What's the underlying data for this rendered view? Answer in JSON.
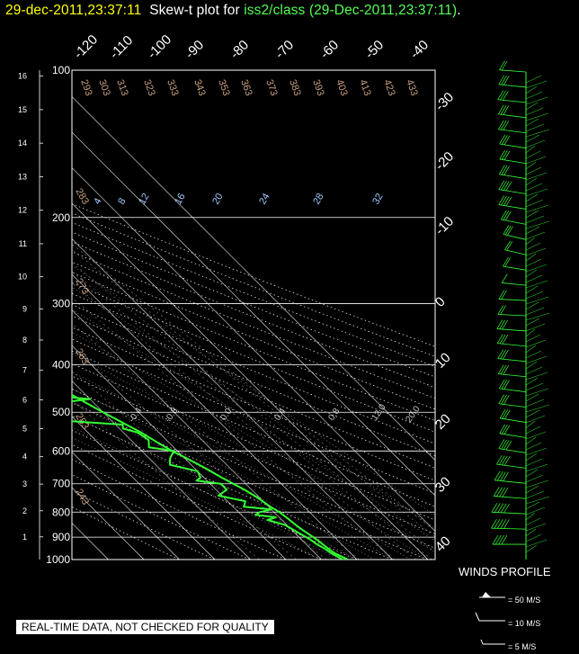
{
  "header": {
    "timestamp": "29-dec-2011,23:37:11",
    "title_prefix": "Skew-t plot for",
    "station": "iss2/class",
    "station_time": "(29-Dec-2011,23:37:11)",
    "title_end": "."
  },
  "disclaimer": "REAL-TIME DATA, NOT CHECKED FOR QUALITY",
  "winds_profile": {
    "title": "WINDS PROFILE",
    "legend": [
      {
        "label": "= 50 M/S"
      },
      {
        "label": "= 10 M/S"
      },
      {
        "label": "= 5 M/S"
      }
    ]
  },
  "colors": {
    "background": "#000000",
    "grid": "#ffffff",
    "trace": "#33ff33",
    "timestamp": "#ffff00",
    "station": "#55ff55",
    "theta_label": "#c8a080",
    "mixing_label": "#a0c8ff"
  },
  "chart_data": {
    "type": "line",
    "chart_kind": "skew-t",
    "pressure_levels": [
      100,
      200,
      300,
      400,
      500,
      600,
      700,
      800,
      900,
      1000
    ],
    "pressure_range": [
      100,
      1000
    ],
    "temperature_range": [
      -40,
      40
    ],
    "temperature_axis_labels": [
      "-120",
      "-110",
      "-100",
      "-90",
      "-80",
      "-70",
      "-60",
      "-50",
      "-40",
      "-30",
      "-20",
      "-10",
      "0",
      "10",
      "20",
      "30",
      "40"
    ],
    "height_labels_km": [
      "1",
      "2",
      "3",
      "4",
      "5",
      "6",
      "7",
      "8",
      "9",
      "10",
      "11",
      "12",
      "13",
      "14",
      "15",
      "16"
    ],
    "dry_adiabat_labels": [
      "293",
      "303",
      "313",
      "323",
      "333",
      "343",
      "353",
      "363",
      "373",
      "383",
      "393",
      "403",
      "413",
      "423",
      "433",
      "283",
      "273",
      "263",
      "253",
      "243"
    ],
    "mixing_ratio_labels": [
      "4",
      "8",
      "12",
      "16",
      "20",
      "24",
      "28",
      "32"
    ],
    "moist_adiabat_labels": [
      "-0.4",
      "-0.8",
      "0.0",
      "0.4",
      "0.8",
      "12.0",
      "20.0"
    ],
    "series": [
      {
        "name": "temperature",
        "points": [
          [
            1000,
            -2.5
          ],
          [
            970,
            -4.5
          ],
          [
            950,
            -5.0
          ],
          [
            920,
            -5.5
          ],
          [
            900,
            -6.0
          ],
          [
            870,
            -7.0
          ],
          [
            850,
            -7.5
          ],
          [
            820,
            -8.0
          ],
          [
            800,
            -8.5
          ],
          [
            780,
            -9.5
          ],
          [
            750,
            -10.5
          ],
          [
            720,
            -12.0
          ],
          [
            700,
            -13.5
          ],
          [
            680,
            -15.0
          ],
          [
            650,
            -17.0
          ],
          [
            620,
            -19.5
          ],
          [
            600,
            -21.5
          ],
          [
            580,
            -23.0
          ],
          [
            550,
            -25.0
          ],
          [
            530,
            -27.0
          ],
          [
            500,
            -30.0
          ],
          [
            480,
            -32.0
          ],
          [
            450,
            -35.0
          ],
          [
            430,
            -37.0
          ],
          [
            400,
            -41.0
          ],
          [
            380,
            -44.0
          ],
          [
            350,
            -48.0
          ],
          [
            330,
            -51.0
          ],
          [
            300,
            -56.0
          ],
          [
            280,
            -59.0
          ],
          [
            250,
            -64.0
          ],
          [
            230,
            -67.0
          ],
          [
            210,
            -70.0
          ],
          [
            200,
            -71.5
          ],
          [
            190,
            -73.0
          ],
          [
            180,
            -73.5
          ],
          [
            170,
            -74.0
          ],
          [
            160,
            -74.5
          ],
          [
            150,
            -75.0
          ],
          [
            140,
            -75.5
          ],
          [
            130,
            -76.0
          ],
          [
            120,
            -77.0
          ],
          [
            110,
            -77.5
          ],
          [
            100,
            -78.0
          ]
        ]
      },
      {
        "name": "dewpoint",
        "points": [
          [
            1000,
            -4.0
          ],
          [
            970,
            -5.5
          ],
          [
            950,
            -6.0
          ],
          [
            930,
            -7.0
          ],
          [
            910,
            -7.5
          ],
          [
            900,
            -8.0
          ],
          [
            880,
            -9.0
          ],
          [
            860,
            -10.0
          ],
          [
            850,
            -10.5
          ],
          [
            830,
            -14.0
          ],
          [
            820,
            -11.0
          ],
          [
            810,
            -16.0
          ],
          [
            800,
            -14.0
          ],
          [
            790,
            -10.0
          ],
          [
            780,
            -17.0
          ],
          [
            770,
            -16.0
          ],
          [
            760,
            -15.0
          ],
          [
            740,
            -21.0
          ],
          [
            720,
            -17.0
          ],
          [
            700,
            -17.0
          ],
          [
            690,
            -23.0
          ],
          [
            680,
            -21.0
          ],
          [
            660,
            -20.0
          ],
          [
            640,
            -26.0
          ],
          [
            620,
            -24.0
          ],
          [
            600,
            -21.0
          ],
          [
            590,
            -27.0
          ],
          [
            570,
            -25.0
          ],
          [
            550,
            -26.0
          ],
          [
            540,
            -29.0
          ],
          [
            530,
            -28.0
          ],
          [
            520,
            -44.0
          ],
          [
            515,
            -44.0
          ],
          [
            510,
            -41.0
          ],
          [
            505,
            -44.0
          ],
          [
            500,
            -66.0
          ],
          [
            490,
            -49.0
          ],
          [
            480,
            -42.0
          ],
          [
            470,
            -30.0
          ],
          [
            460,
            -44.0
          ],
          [
            450,
            -41.0
          ],
          [
            440,
            -50.0
          ],
          [
            430,
            -38.0
          ],
          [
            420,
            -47.0
          ],
          [
            410,
            -48.0
          ],
          [
            400,
            -55.0
          ],
          [
            390,
            -52.0
          ],
          [
            380,
            -56.0
          ],
          [
            370,
            -56.0
          ],
          [
            360,
            -53.0
          ],
          [
            355,
            -60.0
          ],
          [
            350,
            -62.0
          ],
          [
            345,
            -55.0
          ],
          [
            340,
            -62.0
          ],
          [
            335,
            -65.0
          ],
          [
            330,
            -64.0
          ],
          [
            320,
            -66.0
          ],
          [
            310,
            -66.0
          ],
          [
            300,
            -69.0
          ],
          [
            290,
            -70.0
          ],
          [
            280,
            -71.0
          ],
          [
            270,
            -73.0
          ],
          [
            260,
            -75.0
          ],
          [
            250,
            -76.0
          ],
          [
            240,
            -78.0
          ],
          [
            230,
            -80.0
          ],
          [
            220,
            -82.0
          ],
          [
            210,
            -83.0
          ],
          [
            200,
            -85.0
          ],
          [
            190,
            -88.0
          ],
          [
            180,
            -89.0
          ],
          [
            170,
            -89.0
          ],
          [
            160,
            -89.0
          ],
          [
            150,
            -88.0
          ],
          [
            140,
            -88.0
          ],
          [
            130,
            -88.0
          ],
          [
            120,
            -88.0
          ],
          [
            110,
            -88.0
          ],
          [
            100,
            -89.0
          ]
        ]
      }
    ],
    "winds": {
      "height_range_km": [
        0,
        16
      ],
      "samples": [
        [
          0.5,
          270,
          22
        ],
        [
          1.0,
          275,
          25
        ],
        [
          1.5,
          280,
          25
        ],
        [
          2.0,
          285,
          22
        ],
        [
          2.5,
          290,
          22
        ],
        [
          3.0,
          295,
          20
        ],
        [
          3.5,
          300,
          18
        ],
        [
          4.0,
          300,
          16
        ],
        [
          4.5,
          300,
          15
        ],
        [
          5.0,
          295,
          15
        ],
        [
          5.5,
          295,
          14
        ],
        [
          6.0,
          290,
          14
        ],
        [
          6.5,
          290,
          15
        ],
        [
          7.0,
          290,
          16
        ],
        [
          7.5,
          285,
          15
        ],
        [
          8.0,
          280,
          12
        ],
        [
          8.5,
          280,
          10
        ],
        [
          9.0,
          290,
          6
        ],
        [
          9.5,
          300,
          8
        ],
        [
          10.0,
          310,
          10
        ],
        [
          10.5,
          310,
          14
        ],
        [
          11.0,
          305,
          16
        ],
        [
          11.5,
          300,
          18
        ],
        [
          12.0,
          300,
          18
        ],
        [
          12.5,
          300,
          17
        ],
        [
          13.0,
          300,
          16
        ],
        [
          13.5,
          300,
          16
        ],
        [
          14.0,
          295,
          16
        ],
        [
          14.5,
          295,
          16
        ],
        [
          15.0,
          290,
          15
        ],
        [
          15.5,
          290,
          13
        ],
        [
          16.0,
          285,
          10
        ]
      ]
    }
  }
}
